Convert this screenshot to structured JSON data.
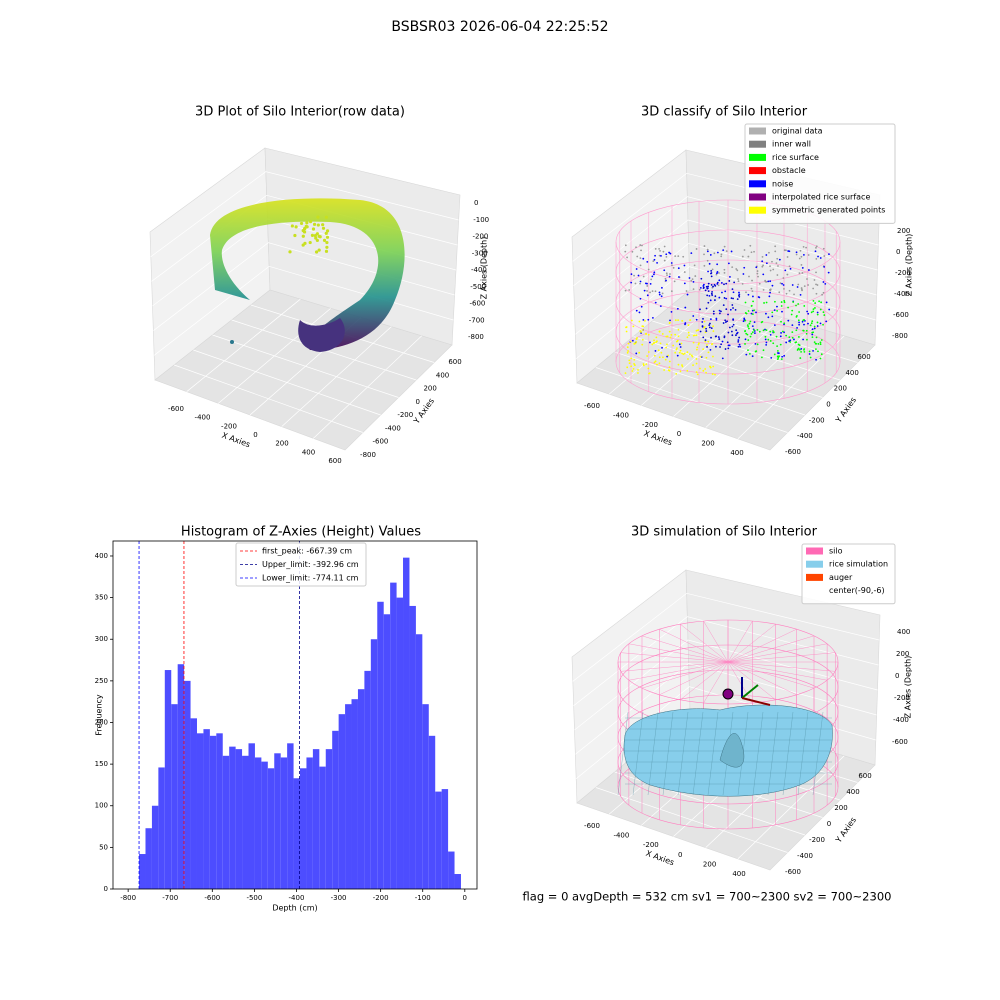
{
  "title": "BSBSR03 2026-06-04 22:25:52",
  "chart_data": [
    {
      "type": "scatter3d",
      "title": "3D Plot of Silo Interior(row data)",
      "xlabel": "X Axies",
      "ylabel": "Y Axies",
      "zlabel": "Z Axies (Depth)",
      "xticks": [
        -600,
        -400,
        -200,
        0,
        200,
        400,
        600
      ],
      "yticks": [
        -800,
        -600,
        -400,
        -200,
        0,
        200,
        400,
        600
      ],
      "zticks": [
        0,
        -100,
        -200,
        -300,
        -400,
        -500,
        -600,
        -700,
        -800
      ]
    },
    {
      "type": "scatter3d",
      "title": "3D classify of Silo Interior",
      "xlabel": "X Axies",
      "ylabel": "Y Axies",
      "zlabel": "Z Axies (Depth)",
      "xticks": [
        -600,
        -400,
        -200,
        0,
        200,
        400
      ],
      "yticks": [
        -600,
        -400,
        -200,
        0,
        200,
        400,
        600
      ],
      "zticks": [
        200,
        0,
        -200,
        -400,
        -600,
        -800
      ],
      "legend": [
        {
          "name": "original data",
          "color": "#b0b0b0"
        },
        {
          "name": "inner wall",
          "color": "#808080"
        },
        {
          "name": "rice surface",
          "color": "#00ff00"
        },
        {
          "name": "obstacle",
          "color": "#ff0000"
        },
        {
          "name": "noise",
          "color": "#0000ff"
        },
        {
          "name": "interpolated rice surface",
          "color": "#800080"
        },
        {
          "name": "symmetric generated points",
          "color": "#ffff00"
        }
      ]
    },
    {
      "type": "histogram",
      "title": "Histogram of Z-Axies (Height) Values",
      "xlabel": "Depth (cm)",
      "ylabel": "Frequency",
      "color": "#4d4dff",
      "bins": [
        -774.1,
        -758.8,
        -743.5,
        -728.2,
        -712.9,
        -697.6,
        -682.3,
        -667.0,
        -651.7,
        -636.4,
        -621.1,
        -605.8,
        -590.5,
        -575.2,
        -559.9,
        -544.6,
        -529.3,
        -514.0,
        -498.7,
        -483.4,
        -468.1,
        -452.8,
        -437.5,
        -422.2,
        -406.9,
        -391.6,
        -376.3,
        -361.0,
        -345.7,
        -330.4,
        -315.1,
        -299.8,
        -284.5,
        -269.2,
        -253.9,
        -238.6,
        -223.3,
        -208.0,
        -192.7,
        -177.4,
        -162.1,
        -146.8,
        -131.5,
        -116.2,
        -100.9,
        -85.6,
        -70.3,
        -55.0,
        -39.7,
        -24.4,
        -9.1
      ],
      "counts": [
        42,
        73,
        100,
        146,
        263,
        222,
        270,
        250,
        205,
        187,
        192,
        184,
        187,
        160,
        171,
        168,
        160,
        175,
        158,
        153,
        145,
        163,
        158,
        175,
        133,
        145,
        158,
        168,
        147,
        168,
        190,
        210,
        222,
        228,
        240,
        262,
        300,
        345,
        330,
        368,
        350,
        398,
        340,
        306,
        222,
        184,
        117,
        120,
        45,
        18
      ],
      "vlines": [
        {
          "name": "first_peak: -667.39 cm",
          "value": -667.39,
          "color": "#ff0000"
        },
        {
          "name": "Upper_limit: -392.96 cm",
          "value": -392.96,
          "color": "#00008b"
        },
        {
          "name": "Lower_limit: -774.11 cm",
          "value": -774.11,
          "color": "#0000ff"
        }
      ],
      "xlim": [
        -836,
        29
      ],
      "ylim": [
        0,
        418
      ],
      "xticks": [
        -800,
        -700,
        -600,
        -500,
        -400,
        -300,
        -200,
        -100,
        0
      ],
      "yticks": [
        0,
        50,
        100,
        150,
        200,
        250,
        300,
        350,
        400
      ]
    },
    {
      "type": "surface3d",
      "title": "3D simulation of Silo Interior",
      "xlabel": "X Axies",
      "ylabel": "Y Axies",
      "zlabel": "Z Axies (Depth)",
      "xticks": [
        -600,
        -400,
        -200,
        0,
        200,
        400
      ],
      "yticks": [
        -600,
        -400,
        -200,
        0,
        200,
        400,
        600
      ],
      "zticks": [
        400,
        200,
        0,
        -200,
        -400,
        -600
      ],
      "legend": [
        {
          "name": "silo",
          "color": "#ff69b4"
        },
        {
          "name": "rice simulation",
          "color": "#87ceeb"
        },
        {
          "name": "auger",
          "color": "#ff4500"
        },
        {
          "name": "center(-90,-6)",
          "color": "#ffffff"
        }
      ]
    }
  ],
  "footer": "flag = 0     avgDepth = 532 cm  sv1 = 700~2300  sv2 = 700~2300"
}
